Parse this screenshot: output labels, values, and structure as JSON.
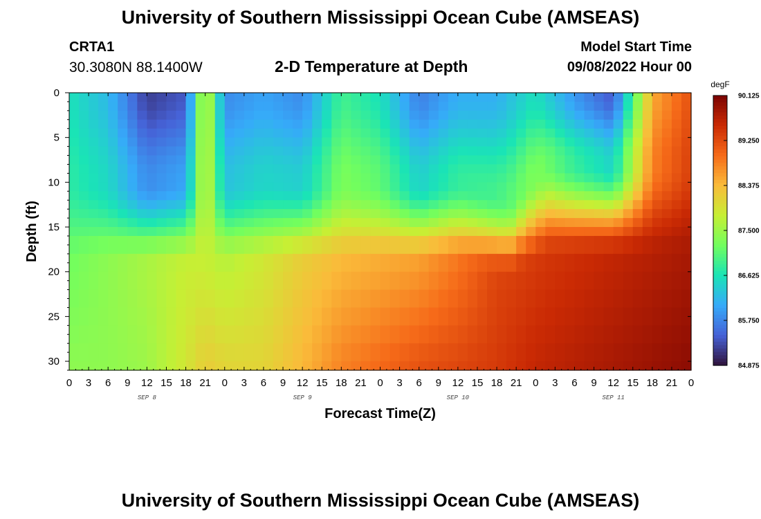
{
  "header": {
    "title": "University of Southern Mississippi Ocean Cube (AMSEAS)",
    "station_id": "CRTA1",
    "station_coords": "30.3080N  88.1400W",
    "chart_title": "2-D Temperature at Depth",
    "model_start_label": "Model Start Time",
    "model_start_value": "09/08/2022 Hour 00"
  },
  "footer": {
    "title": "University of Southern Mississippi Ocean Cube (AMSEAS)"
  },
  "chart_data": {
    "type": "heatmap",
    "title": "2-D Temperature at Depth",
    "xlabel": "Forecast Time(Z)",
    "ylabel": "Depth (ft)",
    "x_ticks": [
      "0",
      "3",
      "6",
      "9",
      "12",
      "15",
      "18",
      "21",
      "0",
      "3",
      "6",
      "9",
      "12",
      "15",
      "18",
      "21",
      "0",
      "3",
      "6",
      "9",
      "12",
      "15",
      "18",
      "21",
      "0",
      "3",
      "6",
      "9",
      "12",
      "15",
      "18",
      "21",
      "0"
    ],
    "day_labels": [
      {
        "label": "SEP 8",
        "hour": 12
      },
      {
        "label": "SEP 9",
        "hour": 36
      },
      {
        "label": "SEP 10",
        "hour": 60
      },
      {
        "label": "SEP 11",
        "hour": 84
      }
    ],
    "x_range_hours": [
      0,
      96
    ],
    "y_ticks": [
      0,
      5,
      10,
      15,
      20,
      25,
      30
    ],
    "ylim": [
      0,
      31
    ],
    "depth_levels_ft": [
      0,
      1,
      2,
      3,
      4,
      5,
      6,
      7,
      8,
      9,
      10,
      11,
      12,
      13,
      14,
      15,
      16,
      18,
      20,
      22,
      24,
      26,
      28,
      30,
      31
    ],
    "time_hours": [
      0,
      6,
      12,
      18,
      21,
      24,
      30,
      36,
      42,
      48,
      54,
      60,
      66,
      72,
      78,
      84,
      90,
      96
    ],
    "surface_temp_degF": [
      86.6,
      86.2,
      85.2,
      85.4,
      88.0,
      85.8,
      86.0,
      85.8,
      86.9,
      86.6,
      85.7,
      86.1,
      86.1,
      86.6,
      85.9,
      85.4,
      88.5,
      89.2
    ],
    "mid_temp_degF": [
      87.2,
      87.4,
      87.6,
      87.8,
      87.8,
      87.7,
      87.9,
      88.2,
      88.4,
      88.5,
      88.6,
      88.9,
      89.3,
      89.4,
      89.5,
      89.6,
      89.7,
      89.8
    ],
    "bottom_temp_degF": [
      87.4,
      87.4,
      87.5,
      87.9,
      88.2,
      88.1,
      88.1,
      88.4,
      88.8,
      89.0,
      89.2,
      89.3,
      89.4,
      89.6,
      89.7,
      89.8,
      89.9,
      90.0
    ],
    "colorbar": {
      "unit": "degF",
      "min": 84.875,
      "max": 90.125,
      "ticks": [
        "90.125",
        "89.250",
        "88.375",
        "87.500",
        "86.625",
        "85.750",
        "84.875"
      ],
      "tick_values": [
        90.125,
        89.25,
        88.375,
        87.5,
        86.625,
        85.75,
        84.875
      ],
      "colors": [
        "#30123b",
        "#4662d7",
        "#36aaf9",
        "#1ae4b6",
        "#72fe5e",
        "#c7ef34",
        "#fabb3a",
        "#f66b19",
        "#ca2a04",
        "#7a0403"
      ]
    }
  }
}
